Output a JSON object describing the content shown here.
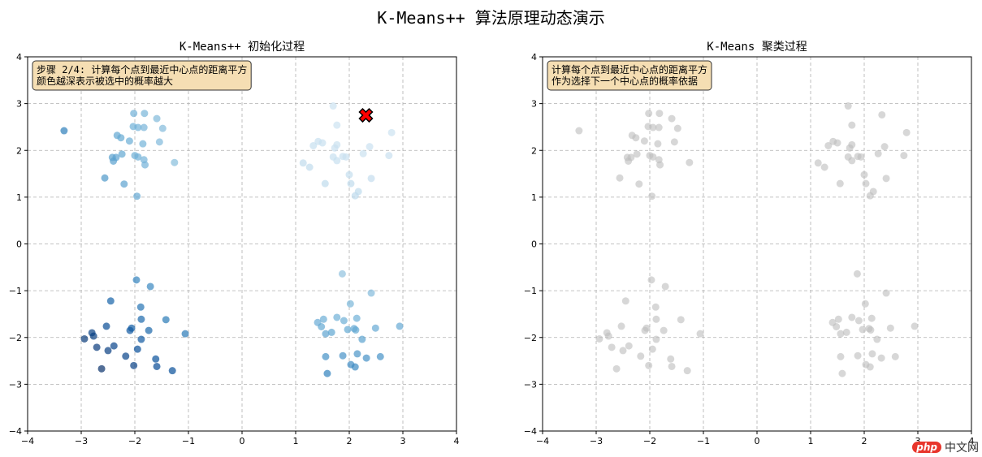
{
  "figure": {
    "suptitle": "K-Means++ 算法原理动态演示",
    "watermark": {
      "badge": "php",
      "text": "中文网"
    }
  },
  "colors": {
    "centroid": "#ff0000",
    "gray_point": "#bdbdbd",
    "annotation_bg": "#f5deb3",
    "dark_blue": "#08306b",
    "light_blue": "#deebf7",
    "grid": "#b0b0b0"
  },
  "chart_data": [
    {
      "type": "scatter",
      "title": "K-Means++ 初始化过程",
      "xlabel": "",
      "ylabel": "",
      "xlim": [
        -4,
        4
      ],
      "ylim": [
        -4,
        4
      ],
      "xticks": [
        -4,
        -3,
        -2,
        -1,
        0,
        1,
        2,
        3,
        4
      ],
      "yticks": [
        -4,
        -3,
        -2,
        -1,
        0,
        1,
        2,
        3,
        4
      ],
      "grid": true,
      "annotation": [
        "步骤 2/4: 计算每个点到最近中心点的距离平方",
        "颜色越深表示被选中的概率越大"
      ],
      "color_mode": "distance_squared_blues",
      "centroids": [
        {
          "x": 2.31,
          "y": 2.75,
          "marker": "X",
          "color": "#ff0000"
        }
      ]
    },
    {
      "type": "scatter",
      "title": "K-Means 聚类过程",
      "xlabel": "",
      "ylabel": "",
      "xlim": [
        -4,
        4
      ],
      "ylim": [
        -4,
        4
      ],
      "xticks": [
        -4,
        -3,
        -2,
        -1,
        0,
        1,
        2,
        3,
        4
      ],
      "yticks": [
        -4,
        -3,
        -2,
        -1,
        0,
        1,
        2,
        3,
        4
      ],
      "grid": true,
      "annotation": [
        "计算每个点到最近中心点的距离平方",
        "作为选择下一个中心点的概率依据"
      ],
      "color_mode": "gray",
      "centroids": []
    }
  ],
  "points": [
    [
      1.7,
      2.95
    ],
    [
      2.33,
      2.76
    ],
    [
      1.77,
      2.54
    ],
    [
      2.79,
      2.38
    ],
    [
      1.77,
      2.12
    ],
    [
      1.42,
      2.19
    ],
    [
      1.5,
      2.16
    ],
    [
      1.33,
      2.1
    ],
    [
      1.73,
      2.05
    ],
    [
      2.38,
      2.08
    ],
    [
      2.26,
      1.93
    ],
    [
      2.74,
      1.89
    ],
    [
      1.7,
      1.86
    ],
    [
      1.88,
      1.87
    ],
    [
      1.94,
      1.86
    ],
    [
      1.77,
      1.78
    ],
    [
      1.14,
      1.73
    ],
    [
      1.26,
      1.64
    ],
    [
      2.0,
      1.48
    ],
    [
      2.41,
      1.4
    ],
    [
      1.55,
      1.29
    ],
    [
      2.03,
      1.29
    ],
    [
      2.17,
      1.12
    ],
    [
      2.11,
      1.03
    ],
    [
      -3.32,
      2.42
    ],
    [
      -2.02,
      2.79
    ],
    [
      -1.82,
      2.79
    ],
    [
      -1.59,
      2.68
    ],
    [
      -2.03,
      2.51
    ],
    [
      -1.94,
      2.49
    ],
    [
      -1.83,
      2.49
    ],
    [
      -1.48,
      2.47
    ],
    [
      -2.33,
      2.32
    ],
    [
      -2.26,
      2.27
    ],
    [
      -2.1,
      2.2
    ],
    [
      -1.85,
      2.14
    ],
    [
      -1.54,
      2.18
    ],
    [
      -2.24,
      1.92
    ],
    [
      -2.42,
      1.85
    ],
    [
      -2.35,
      1.85
    ],
    [
      -2.4,
      1.77
    ],
    [
      -2.0,
      1.89
    ],
    [
      -1.94,
      1.86
    ],
    [
      -1.83,
      1.8
    ],
    [
      -1.81,
      1.69
    ],
    [
      -1.26,
      1.74
    ],
    [
      -2.56,
      1.41
    ],
    [
      -2.2,
      1.28
    ],
    [
      -1.96,
      1.02
    ],
    [
      -1.97,
      -0.77
    ],
    [
      -1.71,
      -0.91
    ],
    [
      -2.45,
      -1.22
    ],
    [
      -1.89,
      -1.35
    ],
    [
      -1.88,
      -1.61
    ],
    [
      -1.42,
      -1.62
    ],
    [
      -2.53,
      -1.76
    ],
    [
      -2.06,
      -1.8
    ],
    [
      -2.09,
      -1.85
    ],
    [
      -1.74,
      -1.85
    ],
    [
      -2.8,
      -1.9
    ],
    [
      -2.77,
      -1.97
    ],
    [
      -2.94,
      -2.03
    ],
    [
      -1.88,
      -2.04
    ],
    [
      -1.06,
      -1.92
    ],
    [
      -2.71,
      -2.21
    ],
    [
      -2.39,
      -2.18
    ],
    [
      -2.5,
      -2.28
    ],
    [
      -1.95,
      -2.25
    ],
    [
      -2.17,
      -2.4
    ],
    [
      -1.61,
      -2.46
    ],
    [
      -2.02,
      -2.6
    ],
    [
      -1.59,
      -2.62
    ],
    [
      -2.62,
      -2.67
    ],
    [
      -1.3,
      -2.71
    ],
    [
      1.87,
      -0.64
    ],
    [
      2.41,
      -1.05
    ],
    [
      2.02,
      -1.28
    ],
    [
      1.77,
      -1.57
    ],
    [
      1.52,
      -1.61
    ],
    [
      1.9,
      -1.64
    ],
    [
      2.14,
      -1.59
    ],
    [
      1.41,
      -1.68
    ],
    [
      1.48,
      -1.77
    ],
    [
      1.67,
      -1.89
    ],
    [
      1.56,
      -1.92
    ],
    [
      1.97,
      -1.83
    ],
    [
      2.09,
      -1.81
    ],
    [
      2.12,
      -1.84
    ],
    [
      2.49,
      -1.8
    ],
    [
      2.94,
      -1.76
    ],
    [
      2.24,
      -2.04
    ],
    [
      1.56,
      -2.41
    ],
    [
      1.88,
      -2.39
    ],
    [
      2.15,
      -2.35
    ],
    [
      2.32,
      -2.44
    ],
    [
      2.58,
      -2.41
    ],
    [
      2.03,
      -2.58
    ],
    [
      2.11,
      -2.63
    ],
    [
      1.59,
      -2.77
    ]
  ]
}
